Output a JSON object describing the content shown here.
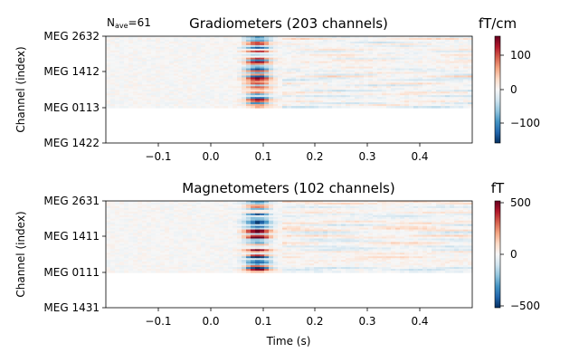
{
  "nave": {
    "prefix": "N",
    "sub": "ave",
    "suffix": "=61"
  },
  "xlabel": "Time (s)",
  "chart_data": [
    {
      "type": "heatmap",
      "title": "Gradiometers (203 channels)",
      "ylabel": "Channel (index)",
      "xlim": [
        -0.2,
        0.5
      ],
      "xticks": [
        -0.1,
        0.0,
        0.1,
        0.2,
        0.3,
        0.4
      ],
      "xtick_labels": [
        "−0.1",
        "0.0",
        "0.1",
        "0.2",
        "0.3",
        "0.4"
      ],
      "ytick_labels": [
        "MEG 2632",
        "MEG 1412",
        "MEG 0113",
        "MEG 1422"
      ],
      "data_fraction": 0.67,
      "colorbar": {
        "unit": "fT/cm",
        "range": [
          -160,
          160
        ],
        "ticks": [
          100,
          0,
          -100
        ],
        "tick_labels": [
          "100",
          "0",
          "−100"
        ]
      },
      "seed": 11
    },
    {
      "type": "heatmap",
      "title": "Magnetometers (102 channels)",
      "ylabel": "Channel (index)",
      "xlim": [
        -0.2,
        0.5
      ],
      "xticks": [
        -0.1,
        0.0,
        0.1,
        0.2,
        0.3,
        0.4
      ],
      "xtick_labels": [
        "−0.1",
        "0.0",
        "0.1",
        "0.2",
        "0.3",
        "0.4"
      ],
      "ytick_labels": [
        "MEG 2631",
        "MEG 1411",
        "MEG 0111",
        "MEG 1431"
      ],
      "data_fraction": 0.67,
      "colorbar": {
        "unit": "fT",
        "range": [
          -520,
          520
        ],
        "ticks": [
          500,
          0,
          -500
        ],
        "tick_labels": [
          "500",
          "0",
          "−500"
        ]
      },
      "seed": 29
    }
  ]
}
